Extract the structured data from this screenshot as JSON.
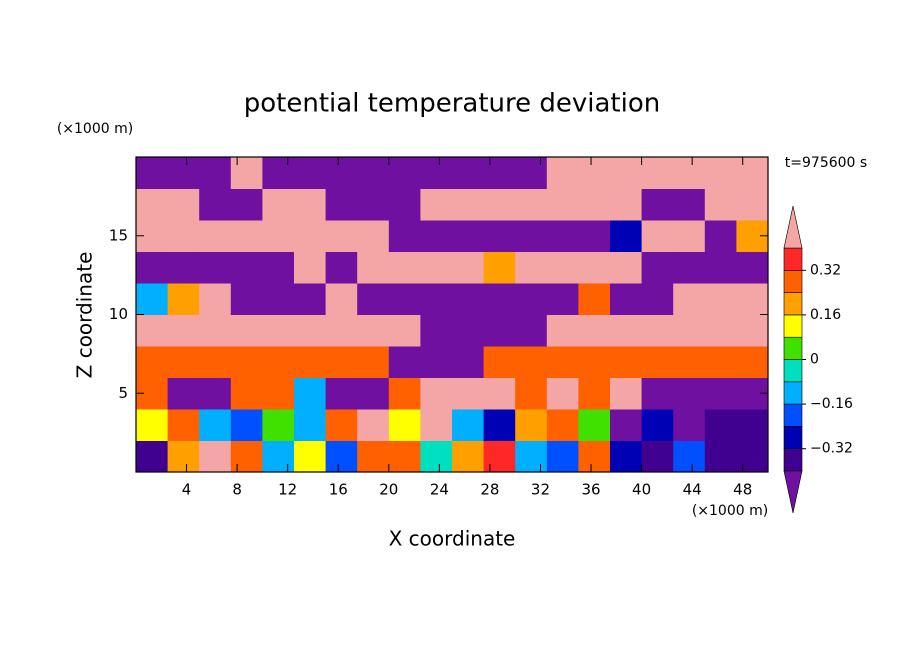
{
  "chart_data": {
    "type": "contour",
    "title": "potential temperature deviation",
    "x_label": "X coordinate",
    "y_label": "Z coordinate",
    "x_unit": "(×1000 m)",
    "y_unit": "(×1000 m)",
    "time_label": "t=975600 s",
    "xlim": [
      0,
      50
    ],
    "ylim": [
      0,
      20
    ],
    "xticks": [
      4,
      8,
      12,
      16,
      20,
      24,
      28,
      32,
      36,
      40,
      44,
      48
    ],
    "yticks": [
      5,
      10,
      15
    ],
    "x": [
      1.25,
      3.75,
      6.25,
      8.75,
      11.25,
      13.75,
      16.25,
      18.75,
      21.25,
      23.75,
      26.25,
      28.75,
      31.25,
      33.75,
      36.25,
      38.75,
      41.25,
      43.75,
      46.25,
      48.75
    ],
    "y": [
      1,
      3,
      5,
      7,
      9,
      11,
      13,
      15,
      17,
      19
    ],
    "z": [
      [
        -0.36,
        0.2,
        0.45,
        0.3,
        -0.1,
        0.1,
        -0.2,
        0.25,
        0.3,
        -0.05,
        0.2,
        0.35,
        -0.1,
        -0.2,
        0.3,
        -0.3,
        -0.35,
        -0.2,
        -0.36,
        -0.38
      ],
      [
        0.1,
        0.3,
        -0.1,
        -0.2,
        0.05,
        -0.15,
        0.3,
        0.45,
        0.1,
        0.45,
        -0.12,
        -0.25,
        0.2,
        0.28,
        0.05,
        -0.45,
        -0.3,
        -0.45,
        -0.36,
        -0.38
      ],
      [
        0.28,
        -0.45,
        -0.45,
        0.3,
        0.28,
        -0.1,
        -0.45,
        -0.45,
        0.28,
        0.45,
        0.45,
        0.45,
        0.3,
        0.45,
        0.28,
        0.45,
        -0.45,
        -0.45,
        -0.45,
        -0.45
      ],
      [
        0.28,
        0.28,
        0.28,
        0.28,
        0.28,
        0.28,
        0.28,
        0.28,
        -0.45,
        -0.45,
        -0.45,
        0.28,
        0.28,
        0.28,
        0.28,
        0.28,
        0.28,
        0.28,
        0.28,
        0.28
      ],
      [
        0.45,
        0.45,
        0.45,
        0.45,
        0.45,
        0.45,
        0.45,
        0.45,
        0.45,
        -0.45,
        -0.45,
        -0.45,
        -0.45,
        0.45,
        0.45,
        0.45,
        0.45,
        0.45,
        0.45,
        0.45
      ],
      [
        -0.1,
        0.2,
        0.45,
        -0.45,
        -0.45,
        -0.45,
        0.45,
        -0.45,
        -0.45,
        -0.45,
        -0.45,
        -0.45,
        -0.45,
        -0.45,
        0.3,
        -0.45,
        -0.45,
        0.45,
        0.45,
        0.45
      ],
      [
        -0.45,
        -0.45,
        -0.45,
        -0.45,
        -0.45,
        0.45,
        -0.45,
        0.45,
        0.45,
        0.45,
        0.45,
        0.2,
        0.45,
        0.45,
        0.45,
        0.45,
        -0.45,
        -0.45,
        -0.45,
        -0.45
      ],
      [
        0.45,
        0.45,
        0.45,
        0.45,
        0.45,
        0.45,
        0.45,
        0.45,
        -0.45,
        -0.45,
        -0.45,
        -0.45,
        -0.45,
        -0.45,
        -0.45,
        -0.3,
        0.45,
        0.45,
        -0.45,
        0.2
      ],
      [
        0.45,
        0.45,
        -0.45,
        -0.45,
        0.45,
        0.45,
        -0.45,
        -0.45,
        -0.45,
        0.45,
        0.45,
        0.45,
        0.45,
        0.45,
        0.45,
        0.45,
        -0.45,
        -0.45,
        0.45,
        0.45
      ],
      [
        -0.45,
        -0.45,
        -0.45,
        0.45,
        -0.45,
        -0.45,
        -0.45,
        -0.45,
        -0.45,
        -0.45,
        -0.45,
        -0.45,
        -0.45,
        0.45,
        0.45,
        0.45,
        0.45,
        0.45,
        0.45,
        0.45
      ]
    ],
    "levels": [
      -0.4,
      -0.32,
      -0.24,
      -0.16,
      -0.08,
      0,
      0.08,
      0.16,
      0.24,
      0.32,
      0.4
    ],
    "colors": [
      "#400090",
      "#0000b4",
      "#0050ff",
      "#00b0ff",
      "#00e0c0",
      "#40e000",
      "#ffff00",
      "#ffa000",
      "#ff6000",
      "#ff2828"
    ],
    "under_color": "#7010a0",
    "over_color": "#f4a5a5",
    "colorbar_ticks": [
      {
        "value": 0.32,
        "label": "0.32"
      },
      {
        "value": 0.16,
        "label": "0.16"
      },
      0,
      {
        "value": -0.16,
        "label": "−0.16"
      },
      {
        "value": -0.32,
        "label": "−0.32"
      }
    ]
  }
}
